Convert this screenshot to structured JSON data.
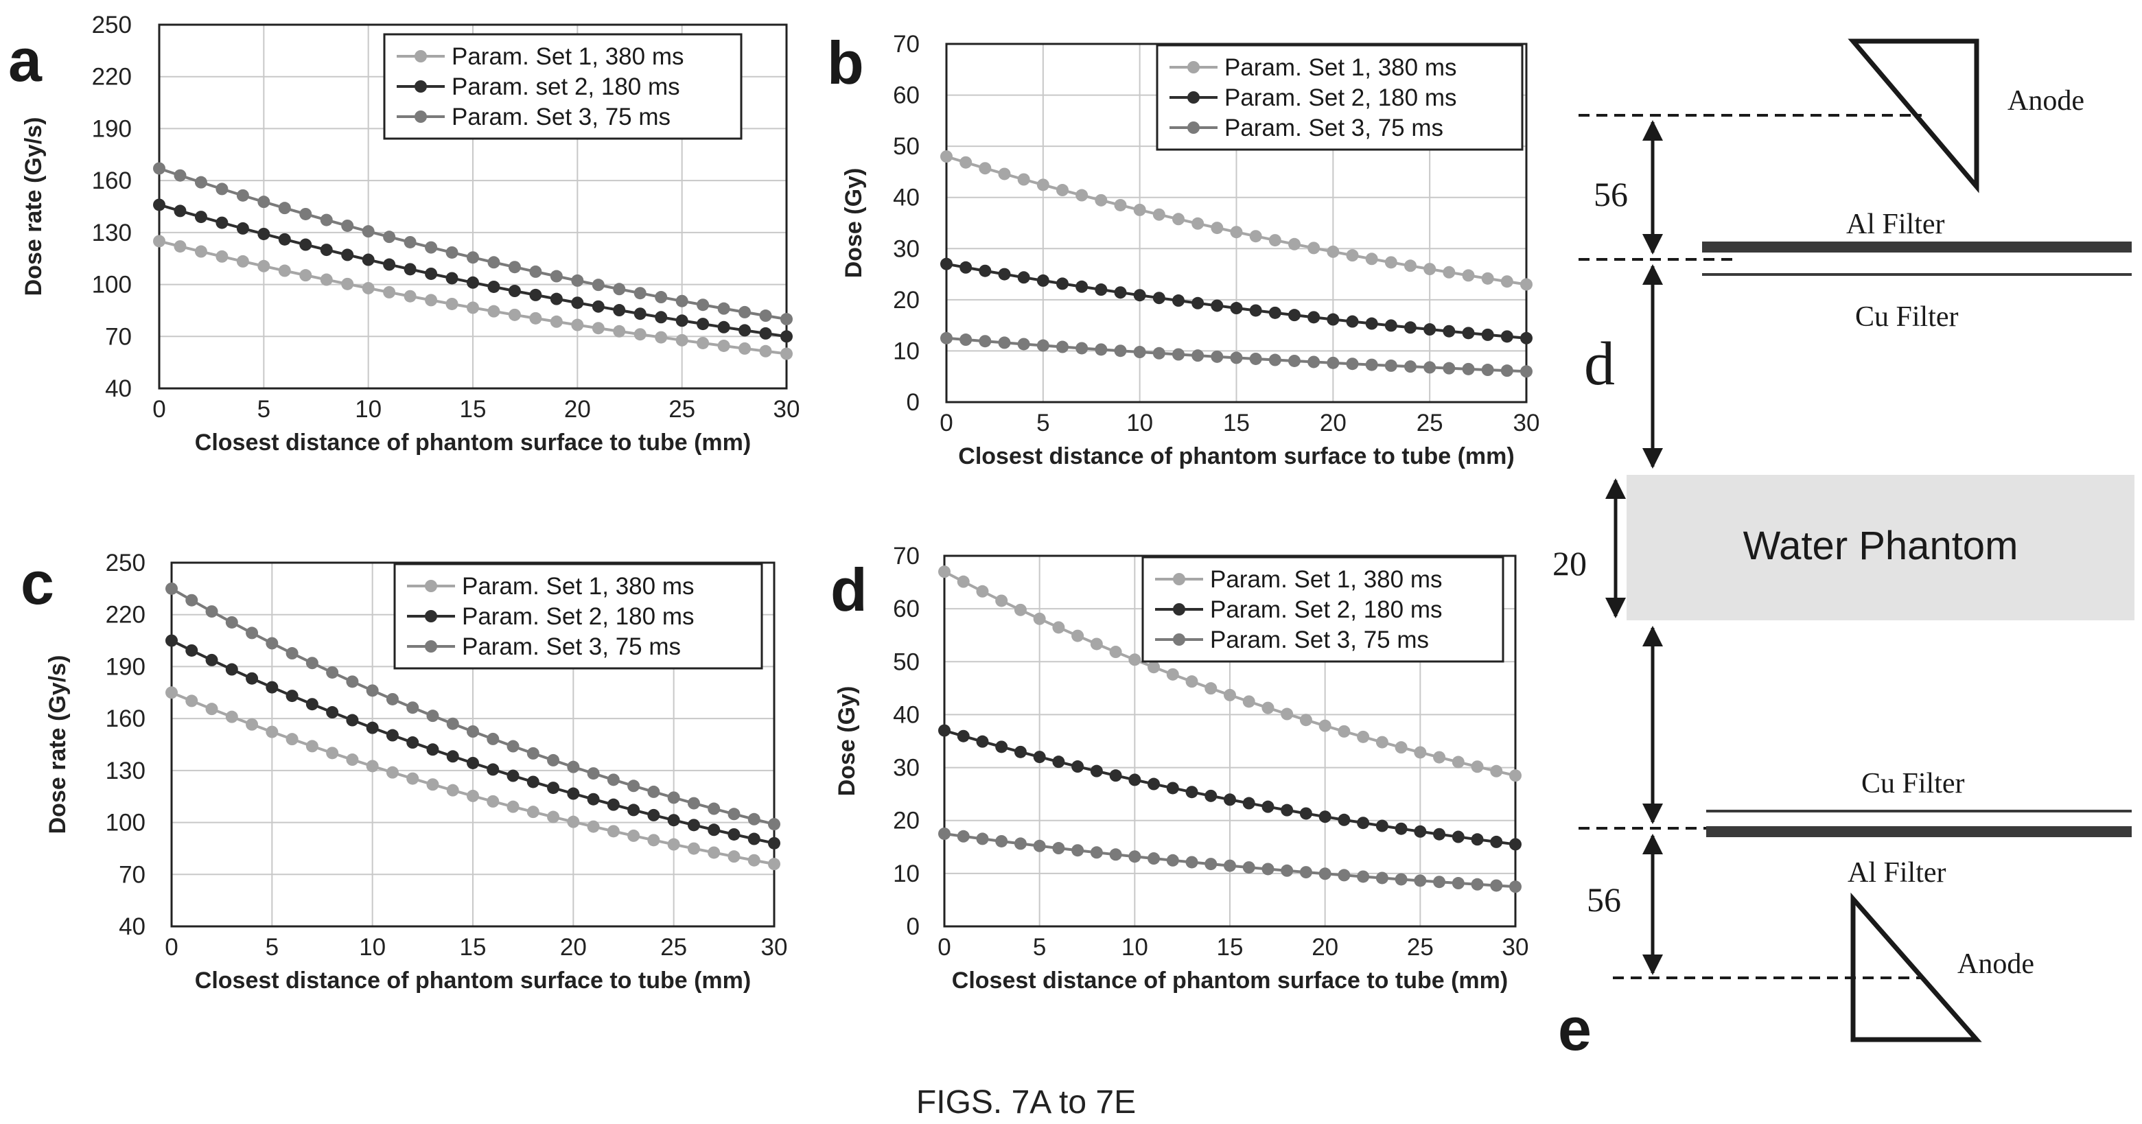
{
  "caption": "FIGS. 7A to 7E",
  "colors": {
    "set1": "#a6a6a6",
    "set2": "#2e2e2e",
    "set3": "#7a7a7a"
  },
  "chart_data": [
    {
      "panel": "a",
      "type": "line",
      "xlabel": "Closest distance of phantom surface to tube (mm)",
      "ylabel": "Dose rate (Gy/s)",
      "xlim": [
        0,
        30
      ],
      "ylim": [
        40,
        250
      ],
      "xticks": [
        0,
        5,
        10,
        15,
        20,
        25,
        30
      ],
      "yticks": [
        40,
        70,
        100,
        130,
        160,
        190,
        220,
        250
      ],
      "grid": true,
      "legend_position": "top-right",
      "series": [
        {
          "name": "Param. Set 1, 380 ms",
          "start": 125,
          "end": 60
        },
        {
          "name": "Param. set 2, 180 ms",
          "start": 146,
          "end": 70
        },
        {
          "name": "Param. Set 3, 75 ms",
          "start": 167,
          "end": 80
        }
      ]
    },
    {
      "panel": "b",
      "type": "line",
      "xlabel": "Closest distance of phantom surface to tube (mm)",
      "ylabel": "Dose (Gy)",
      "xlim": [
        0,
        30
      ],
      "ylim": [
        0,
        70
      ],
      "xticks": [
        0,
        5,
        10,
        15,
        20,
        25,
        30
      ],
      "yticks": [
        0,
        10,
        20,
        30,
        40,
        50,
        60,
        70
      ],
      "grid": true,
      "legend_position": "top-right",
      "series": [
        {
          "name": "Param. Set 1, 380 ms",
          "start": 48,
          "end": 23
        },
        {
          "name": "Param. Set 2, 180 ms",
          "start": 27,
          "end": 12.5
        },
        {
          "name": "Param. Set 3, 75 ms",
          "start": 12.5,
          "end": 6
        }
      ]
    },
    {
      "panel": "c",
      "type": "line",
      "xlabel": "Closest distance of phantom surface to tube (mm)",
      "ylabel": "Dose rate (Gy/s)",
      "xlim": [
        0,
        30
      ],
      "ylim": [
        40,
        250
      ],
      "xticks": [
        0,
        5,
        10,
        15,
        20,
        25,
        30
      ],
      "yticks": [
        40,
        70,
        100,
        130,
        160,
        190,
        220,
        250
      ],
      "grid": true,
      "legend_position": "top-right",
      "series": [
        {
          "name": "Param. Set 1, 380 ms",
          "start": 175,
          "end": 76
        },
        {
          "name": "Param. Set 2, 180 ms",
          "start": 205,
          "end": 88
        },
        {
          "name": "Param. Set 3, 75 ms",
          "start": 235,
          "end": 99
        }
      ]
    },
    {
      "panel": "d",
      "type": "line",
      "xlabel": "Closest distance of phantom surface to tube (mm)",
      "ylabel": "Dose (Gy)",
      "xlim": [
        0,
        30
      ],
      "ylim": [
        0,
        70
      ],
      "xticks": [
        0,
        5,
        10,
        15,
        20,
        25,
        30
      ],
      "yticks": [
        0,
        10,
        20,
        30,
        40,
        50,
        60,
        70
      ],
      "grid": true,
      "legend_position": "top-right",
      "series": [
        {
          "name": "Param. Set 1, 380 ms",
          "start": 67,
          "end": 28.5
        },
        {
          "name": "Param. Set 2, 180 ms",
          "start": 37,
          "end": 15.5
        },
        {
          "name": "Param. Set 3, 75 ms",
          "start": 17.5,
          "end": 7.5
        }
      ]
    }
  ],
  "diagram": {
    "panel": "e",
    "labels": {
      "anode_top": "Anode",
      "al_filter_top": "Al Filter",
      "cu_filter_top": "Cu Filter",
      "dist_56_top": "56",
      "dist_d": "d",
      "phantom": "Water Phantom",
      "dist_20": "20",
      "cu_filter_bottom": "Cu Filter",
      "al_filter_bottom": "Al Filter",
      "dist_56_bottom": "56",
      "anode_bottom": "Anode"
    }
  }
}
